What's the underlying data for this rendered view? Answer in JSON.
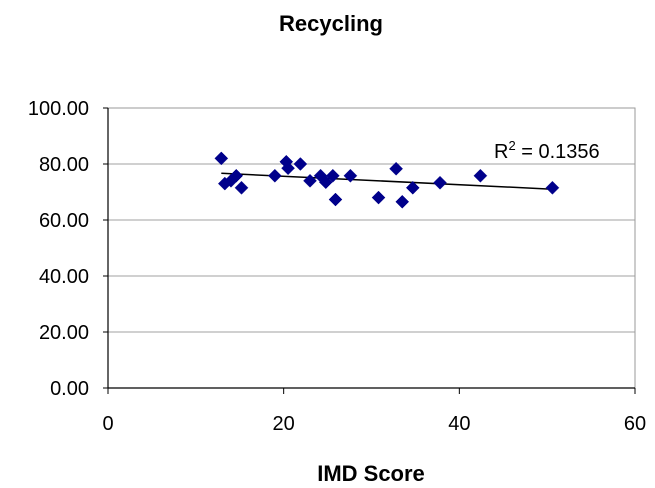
{
  "chart_data": {
    "type": "scatter",
    "title": "Recycling",
    "xlabel": "IMD Score",
    "ylabel": "",
    "xlim": [
      0,
      60
    ],
    "ylim": [
      0,
      100
    ],
    "xticks": [
      "0",
      "20",
      "40",
      "60"
    ],
    "yticks": [
      "0.00",
      "20.00",
      "40.00",
      "60.00",
      "80.00",
      "100.00"
    ],
    "grid": "horizontal",
    "marker_color": "#00008b",
    "trendline": {
      "type": "linear",
      "x": [
        12.9,
        50.6
      ],
      "y": [
        76.7,
        71.0
      ],
      "r2_prefix": "R",
      "r2_sup": "2",
      "r2_value": " = 0.1356"
    },
    "points": [
      {
        "x": 12.9,
        "y": 82.0
      },
      {
        "x": 13.3,
        "y": 73.0
      },
      {
        "x": 14.0,
        "y": 74.0
      },
      {
        "x": 14.6,
        "y": 75.8
      },
      {
        "x": 15.2,
        "y": 71.5
      },
      {
        "x": 19.0,
        "y": 75.8
      },
      {
        "x": 20.3,
        "y": 80.8
      },
      {
        "x": 20.5,
        "y": 78.5
      },
      {
        "x": 21.9,
        "y": 80.0
      },
      {
        "x": 23.0,
        "y": 74.0
      },
      {
        "x": 24.2,
        "y": 75.8
      },
      {
        "x": 24.8,
        "y": 73.5
      },
      {
        "x": 25.6,
        "y": 75.8
      },
      {
        "x": 25.9,
        "y": 67.3
      },
      {
        "x": 27.6,
        "y": 75.8
      },
      {
        "x": 30.8,
        "y": 68.0
      },
      {
        "x": 32.8,
        "y": 78.3
      },
      {
        "x": 33.5,
        "y": 66.5
      },
      {
        "x": 34.7,
        "y": 71.5
      },
      {
        "x": 37.8,
        "y": 73.3
      },
      {
        "x": 42.4,
        "y": 75.8
      },
      {
        "x": 50.6,
        "y": 71.5
      }
    ]
  }
}
